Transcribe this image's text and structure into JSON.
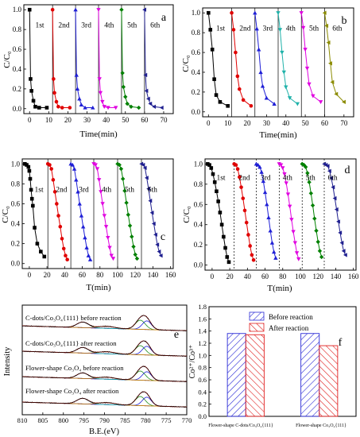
{
  "chart_data": [
    {
      "panel": "a",
      "type": "line",
      "xlabel": "Time(min)",
      "ylabel": "C/C₀",
      "xlim": [
        -3,
        75
      ],
      "ylim": [
        -0.05,
        1.05
      ],
      "xticks": [
        0,
        10,
        20,
        30,
        40,
        50,
        60,
        70
      ],
      "yticks": [
        0.0,
        0.2,
        0.4,
        0.6,
        0.8,
        1.0
      ],
      "dividers": [
        12,
        24,
        36,
        48,
        60
      ],
      "cycle_labels": [
        {
          "text": "1st",
          "x": 3,
          "y": 0.82
        },
        {
          "text": "2nd",
          "x": 15,
          "y": 0.82
        },
        {
          "text": "3rd",
          "x": 27,
          "y": 0.82
        },
        {
          "text": "4th",
          "x": 39,
          "y": 0.82
        },
        {
          "text": "5th",
          "x": 51,
          "y": 0.82
        },
        {
          "text": "6th",
          "x": 63,
          "y": 0.82
        }
      ],
      "series": [
        {
          "name": "1st",
          "color": "#000000",
          "marker": "square",
          "x": [
            0,
            0.5,
            1,
            2,
            3,
            5,
            9
          ],
          "values": [
            1.0,
            0.3,
            0.18,
            0.08,
            0.02,
            0.01,
            0.01
          ]
        },
        {
          "name": "2nd",
          "color": "#e00000",
          "marker": "circle",
          "x": [
            12,
            12.5,
            13,
            14,
            15,
            17,
            21
          ],
          "values": [
            1.0,
            0.3,
            0.16,
            0.07,
            0.02,
            0.01,
            0.01
          ]
        },
        {
          "name": "3rd",
          "color": "#1f1fd6",
          "marker": "triangle-up",
          "x": [
            24,
            24.5,
            25,
            26,
            27,
            29,
            33
          ],
          "values": [
            1.0,
            0.34,
            0.2,
            0.1,
            0.04,
            0.01,
            0.01
          ]
        },
        {
          "name": "4th",
          "color": "#e000e0",
          "marker": "triangle-down",
          "x": [
            36,
            36.5,
            37,
            38,
            39,
            41,
            45
          ],
          "values": [
            1.0,
            0.3,
            0.16,
            0.07,
            0.02,
            0.01,
            0.01
          ]
        },
        {
          "name": "5th",
          "color": "#008000",
          "marker": "diamond",
          "x": [
            48,
            48.5,
            49,
            50,
            51,
            53,
            57
          ],
          "values": [
            1.0,
            0.36,
            0.22,
            0.12,
            0.05,
            0.02,
            0.01
          ]
        },
        {
          "name": "6th",
          "color": "#1f1f8f",
          "marker": "triangle-left",
          "x": [
            60,
            60.5,
            61,
            62,
            63,
            65,
            69
          ],
          "values": [
            1.0,
            0.34,
            0.18,
            0.1,
            0.05,
            0.02,
            0.01
          ]
        }
      ]
    },
    {
      "panel": "b",
      "type": "line",
      "xlabel": "Time(min)",
      "ylabel": "C/C₀",
      "xlim": [
        -3,
        75
      ],
      "ylim": [
        -0.05,
        1.05
      ],
      "xticks": [
        0,
        10,
        20,
        30,
        40,
        50,
        60,
        70
      ],
      "yticks": [
        0.0,
        0.2,
        0.4,
        0.6,
        0.8,
        1.0
      ],
      "dividers": [
        12,
        24,
        36,
        48,
        60
      ],
      "cycle_labels": [
        {
          "text": "1st",
          "x": 4,
          "y": 0.82
        },
        {
          "text": "2nd",
          "x": 16,
          "y": 0.82
        },
        {
          "text": "3rd",
          "x": 28,
          "y": 0.82
        },
        {
          "text": "4th",
          "x": 40,
          "y": 0.82
        },
        {
          "text": "5th",
          "x": 52,
          "y": 0.82
        },
        {
          "text": "6th",
          "x": 64,
          "y": 0.82
        }
      ],
      "series": [
        {
          "name": "1st",
          "color": "#000000",
          "marker": "square",
          "x": [
            0,
            1,
            2,
            3,
            4,
            6,
            10
          ],
          "values": [
            1.0,
            0.83,
            0.63,
            0.33,
            0.17,
            0.1,
            0.06
          ]
        },
        {
          "name": "2nd",
          "color": "#e00000",
          "marker": "circle",
          "x": [
            12,
            13,
            14,
            15,
            16,
            18,
            22
          ],
          "values": [
            1.0,
            0.83,
            0.6,
            0.36,
            0.23,
            0.12,
            0.06
          ]
        },
        {
          "name": "3rd",
          "color": "#1f1fd6",
          "marker": "triangle-up",
          "x": [
            24,
            25,
            26,
            27,
            28,
            30,
            34
          ],
          "values": [
            1.0,
            0.84,
            0.63,
            0.4,
            0.26,
            0.14,
            0.08
          ]
        },
        {
          "name": "4th",
          "color": "#20b2aa",
          "marker": "triangle-down",
          "x": [
            36,
            37,
            38,
            39,
            40,
            42,
            46
          ],
          "values": [
            1.0,
            0.83,
            0.6,
            0.4,
            0.25,
            0.14,
            0.08
          ]
        },
        {
          "name": "5th",
          "color": "#e000e0",
          "marker": "triangle-down",
          "x": [
            48,
            49,
            50,
            51,
            52,
            54,
            58
          ],
          "values": [
            1.0,
            0.85,
            0.63,
            0.44,
            0.28,
            0.16,
            0.1
          ]
        },
        {
          "name": "6th",
          "color": "#8b8b00",
          "marker": "triangle-left",
          "x": [
            60,
            61,
            62,
            63,
            64,
            66,
            70
          ],
          "values": [
            1.0,
            0.87,
            0.7,
            0.49,
            0.3,
            0.18,
            0.1
          ]
        }
      ]
    },
    {
      "panel": "c",
      "type": "line",
      "xlabel": "T(min)",
      "ylabel": "C/C₀",
      "xlim": [
        -8,
        163
      ],
      "ylim": [
        -0.05,
        1.05
      ],
      "xticks": [
        0,
        20,
        40,
        60,
        80,
        100,
        120,
        140,
        160
      ],
      "yticks": [
        0.0,
        0.2,
        0.4,
        0.6,
        0.8,
        1.0
      ],
      "dividers": [
        21,
        47,
        73,
        100,
        127
      ],
      "cycle_labels": [
        {
          "text": "1st",
          "x": 6,
          "y": 0.72
        },
        {
          "text": "2nd",
          "x": 30,
          "y": 0.72
        },
        {
          "text": "3rd",
          "x": 56,
          "y": 0.72
        },
        {
          "text": "4th",
          "x": 82,
          "y": 0.72
        },
        {
          "text": "5th",
          "x": 108,
          "y": 0.72
        },
        {
          "text": "6th",
          "x": 134,
          "y": 0.72
        }
      ],
      "series": [
        {
          "name": "1st",
          "color": "#000000",
          "marker": "square",
          "x": [
            -5,
            -3,
            -1,
            0,
            1,
            2,
            3,
            4,
            6,
            9,
            13,
            17
          ],
          "values": [
            1.0,
            0.99,
            0.97,
            0.93,
            0.85,
            0.74,
            0.65,
            0.58,
            0.36,
            0.2,
            0.12,
            0.07
          ]
        },
        {
          "name": "2nd",
          "color": "#e00000",
          "marker": "circle",
          "x": [
            21,
            23,
            25,
            27,
            29,
            31,
            33,
            35,
            37,
            39,
            41,
            43
          ],
          "values": [
            1.0,
            0.99,
            0.95,
            0.84,
            0.72,
            0.6,
            0.48,
            0.37,
            0.25,
            0.15,
            0.08,
            0.04
          ]
        },
        {
          "name": "3rd",
          "color": "#1f1fd6",
          "marker": "triangle-up",
          "x": [
            47,
            49,
            51,
            53,
            55,
            57,
            59,
            61,
            63,
            65,
            67,
            69
          ],
          "values": [
            1.0,
            0.99,
            0.95,
            0.84,
            0.72,
            0.6,
            0.48,
            0.37,
            0.26,
            0.16,
            0.08,
            0.04
          ]
        },
        {
          "name": "4th",
          "color": "#e000e0",
          "marker": "triangle-down",
          "x": [
            73,
            75,
            77,
            79,
            81,
            83,
            85,
            87,
            89,
            91,
            93,
            95
          ],
          "values": [
            1.0,
            0.99,
            0.95,
            0.84,
            0.72,
            0.6,
            0.48,
            0.37,
            0.26,
            0.16,
            0.08,
            0.05
          ]
        },
        {
          "name": "5th",
          "color": "#008000",
          "marker": "diamond",
          "x": [
            100,
            102,
            104,
            106,
            108,
            110,
            112,
            114,
            116,
            118,
            120,
            122
          ],
          "values": [
            1.0,
            0.99,
            0.95,
            0.85,
            0.73,
            0.61,
            0.49,
            0.38,
            0.27,
            0.17,
            0.09,
            0.05
          ]
        },
        {
          "name": "6th",
          "color": "#1f1f8f",
          "marker": "triangle-left",
          "x": [
            127,
            129,
            131,
            133,
            135,
            137,
            139,
            141,
            143,
            145,
            147,
            149
          ],
          "values": [
            1.0,
            0.99,
            0.96,
            0.86,
            0.75,
            0.63,
            0.51,
            0.4,
            0.29,
            0.19,
            0.12,
            0.08
          ]
        }
      ]
    },
    {
      "panel": "d",
      "type": "line",
      "xlabel": "T(min)",
      "ylabel": "C/C₀",
      "xlim": [
        -8,
        163
      ],
      "ylim": [
        -0.05,
        1.05
      ],
      "xticks": [
        0,
        20,
        40,
        60,
        80,
        100,
        120,
        140,
        160
      ],
      "yticks": [
        0.0,
        0.2,
        0.4,
        0.6,
        0.8,
        1.0
      ],
      "dividers": [
        25,
        50,
        76,
        102,
        127
      ],
      "cycle_labels": [
        {
          "text": "1st",
          "x": 5,
          "y": 0.84
        },
        {
          "text": "2nd",
          "x": 30,
          "y": 0.84
        },
        {
          "text": "3rd",
          "x": 55,
          "y": 0.84
        },
        {
          "text": "4th",
          "x": 80,
          "y": 0.84
        },
        {
          "text": "5th",
          "x": 106,
          "y": 0.84
        },
        {
          "text": "6th",
          "x": 131,
          "y": 0.84
        }
      ],
      "series": [
        {
          "name": "1st",
          "color": "#000000",
          "marker": "square",
          "x": [
            -5,
            -3,
            -1,
            1,
            3,
            5,
            7,
            9,
            11,
            13,
            15,
            17,
            19
          ],
          "values": [
            1.0,
            0.99,
            0.96,
            0.9,
            0.82,
            0.73,
            0.63,
            0.52,
            0.4,
            0.28,
            0.17,
            0.08,
            0.03
          ]
        },
        {
          "name": "2nd",
          "color": "#e00000",
          "marker": "circle",
          "x": [
            25,
            27,
            29,
            31,
            33,
            35,
            37,
            39,
            41,
            43,
            45,
            47
          ],
          "values": [
            1.0,
            0.99,
            0.95,
            0.87,
            0.77,
            0.66,
            0.54,
            0.42,
            0.3,
            0.19,
            0.1,
            0.05
          ]
        },
        {
          "name": "3rd",
          "color": "#1f1fd6",
          "marker": "triangle-up",
          "x": [
            50,
            52,
            54,
            56,
            58,
            60,
            62,
            64,
            66,
            68,
            70,
            72
          ],
          "values": [
            1.0,
            0.99,
            0.97,
            0.92,
            0.83,
            0.72,
            0.6,
            0.47,
            0.34,
            0.22,
            0.13,
            0.07
          ]
        },
        {
          "name": "4th",
          "color": "#e000e0",
          "marker": "triangle-down",
          "x": [
            76,
            78,
            80,
            82,
            84,
            86,
            88,
            90,
            92,
            94,
            96,
            98
          ],
          "values": [
            1.0,
            0.99,
            0.96,
            0.9,
            0.81,
            0.7,
            0.58,
            0.45,
            0.33,
            0.22,
            0.12,
            0.06
          ]
        },
        {
          "name": "5th",
          "color": "#008000",
          "marker": "diamond",
          "x": [
            102,
            104,
            106,
            108,
            110,
            112,
            114,
            116,
            118,
            120,
            122,
            124
          ],
          "values": [
            1.0,
            0.99,
            0.97,
            0.91,
            0.82,
            0.71,
            0.59,
            0.46,
            0.34,
            0.23,
            0.14,
            0.08
          ]
        },
        {
          "name": "6th",
          "color": "#1f1f8f",
          "marker": "triangle-left",
          "x": [
            127,
            129,
            131,
            133,
            135,
            137,
            139,
            141,
            143,
            145,
            147,
            149,
            151
          ],
          "values": [
            1.0,
            0.99,
            0.98,
            0.93,
            0.86,
            0.77,
            0.66,
            0.55,
            0.43,
            0.32,
            0.22,
            0.14,
            0.1
          ]
        }
      ]
    },
    {
      "panel": "e",
      "type": "line",
      "xlabel": "B.E.(eV)",
      "ylabel": "Intensity",
      "x_reversed": true,
      "xlim": [
        810,
        770
      ],
      "xticks": [
        810,
        805,
        800,
        795,
        790,
        785,
        780,
        775,
        770
      ],
      "spectrum_labels": [
        "C-dots/Co₃O₄{111} before reaction",
        "C-dots/Co₃O₄{111} after reaction",
        "Flower-shape Co₃O₄ before reaction",
        "Flower-shape Co₃O₄ after reaction"
      ],
      "spectrum_offsets": [
        3.0,
        2.0,
        1.0,
        0.0
      ],
      "peaks": {
        "co2p3_2": 780.0,
        "co2p1_2": 795.3,
        "satellite": 789.5
      }
    },
    {
      "panel": "f",
      "type": "bar",
      "ylabel": "Co²⁺/Co³⁺",
      "categories": [
        "Flower-shape C-dots/Co₃O₄{111}",
        "Flower-shape Co₃O₄{111}"
      ],
      "ylim": [
        0.0,
        1.8
      ],
      "yticks": [
        0.0,
        0.2,
        0.4,
        0.6,
        0.8,
        1.0,
        1.2,
        1.4,
        1.6,
        1.8
      ],
      "series": [
        {
          "name": "Before reaction",
          "color": "#2b2bd6",
          "values": [
            1.36,
            1.36
          ]
        },
        {
          "name": "After reaction",
          "color": "#e02020",
          "values": [
            1.34,
            1.16
          ]
        }
      ],
      "legend": "top-center"
    }
  ],
  "panel_letters": [
    "a",
    "b",
    "c",
    "d",
    "e",
    "f"
  ]
}
